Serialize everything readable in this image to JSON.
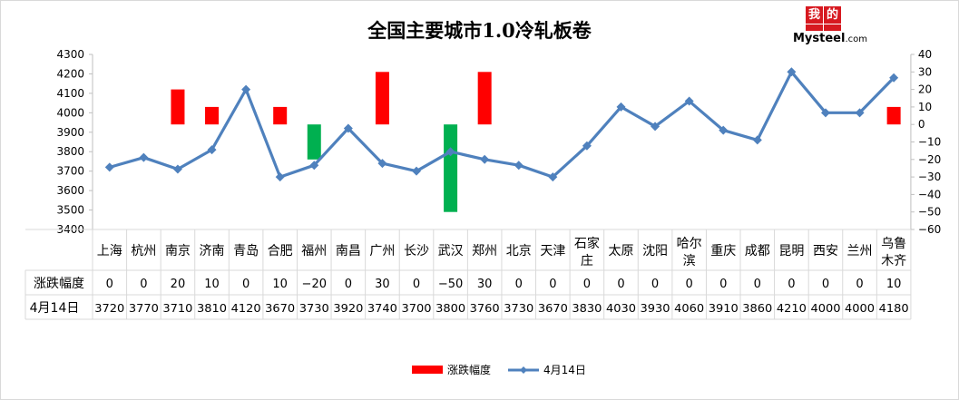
{
  "title": "全国主要城市1.0冷轧板卷",
  "logo": {
    "chars": [
      "我",
      "的",
      "钢",
      "铁"
    ],
    "word": "Mysteel",
    "suffix": ".com"
  },
  "colors": {
    "up": "#ff0000",
    "down": "#00b050",
    "line": "#4f81bd",
    "grid": "#d9d9d9"
  },
  "chart_data": {
    "type": "bar+line",
    "categories": [
      "上海",
      "杭州",
      "南京",
      "济南",
      "青岛",
      "合肥",
      "福州",
      "南昌",
      "广州",
      "长沙",
      "武汉",
      "郑州",
      "北京",
      "天津",
      "石家庄",
      "太原",
      "沈阳",
      "哈尔滨",
      "重庆",
      "成都",
      "昆明",
      "西安",
      "兰州",
      "乌鲁木齐"
    ],
    "category_lines": [
      [
        "上海"
      ],
      [
        "杭州"
      ],
      [
        "南京"
      ],
      [
        "济南"
      ],
      [
        "青岛"
      ],
      [
        "合肥"
      ],
      [
        "福州"
      ],
      [
        "南昌"
      ],
      [
        "广州"
      ],
      [
        "长沙"
      ],
      [
        "武汉"
      ],
      [
        "郑州"
      ],
      [
        "北京"
      ],
      [
        "天津"
      ],
      [
        "石家",
        "庄"
      ],
      [
        "太原"
      ],
      [
        "沈阳"
      ],
      [
        "哈尔",
        "滨"
      ],
      [
        "重庆"
      ],
      [
        "成都"
      ],
      [
        "昆明"
      ],
      [
        "西安"
      ],
      [
        "兰州"
      ],
      [
        "乌鲁",
        "木齐"
      ]
    ],
    "series": [
      {
        "name": "涨跌幅度",
        "type": "bar",
        "axis": "right",
        "values": [
          0,
          0,
          20,
          10,
          0,
          10,
          -20,
          0,
          30,
          0,
          -50,
          30,
          0,
          0,
          0,
          0,
          0,
          0,
          0,
          0,
          0,
          0,
          0,
          10
        ],
        "display": [
          "0",
          "0",
          "20",
          "10",
          "0",
          "10",
          "−20",
          "0",
          "30",
          "0",
          "−50",
          "30",
          "0",
          "0",
          "0",
          "0",
          "0",
          "0",
          "0",
          "0",
          "0",
          "0",
          "0",
          "10"
        ]
      },
      {
        "name": "4月14日",
        "type": "line",
        "axis": "left",
        "values": [
          3720,
          3770,
          3710,
          3810,
          4120,
          3670,
          3730,
          3920,
          3740,
          3700,
          3800,
          3760,
          3730,
          3670,
          3830,
          4030,
          3930,
          4060,
          3910,
          3860,
          4210,
          4000,
          4000,
          4180
        ]
      }
    ],
    "left_axis": {
      "ylim": [
        3400,
        4300
      ],
      "ticks": [
        "3400",
        "3500",
        "3600",
        "3700",
        "3800",
        "3900",
        "4000",
        "4100",
        "4200",
        "4300"
      ]
    },
    "right_axis": {
      "ylim": [
        -60,
        40
      ],
      "ticks": [
        "40",
        "30",
        "20",
        "10",
        "0",
        "−10",
        "−20",
        "−30",
        "−40",
        "−50",
        "−60"
      ]
    },
    "grid": true,
    "legend_position": "bottom"
  }
}
